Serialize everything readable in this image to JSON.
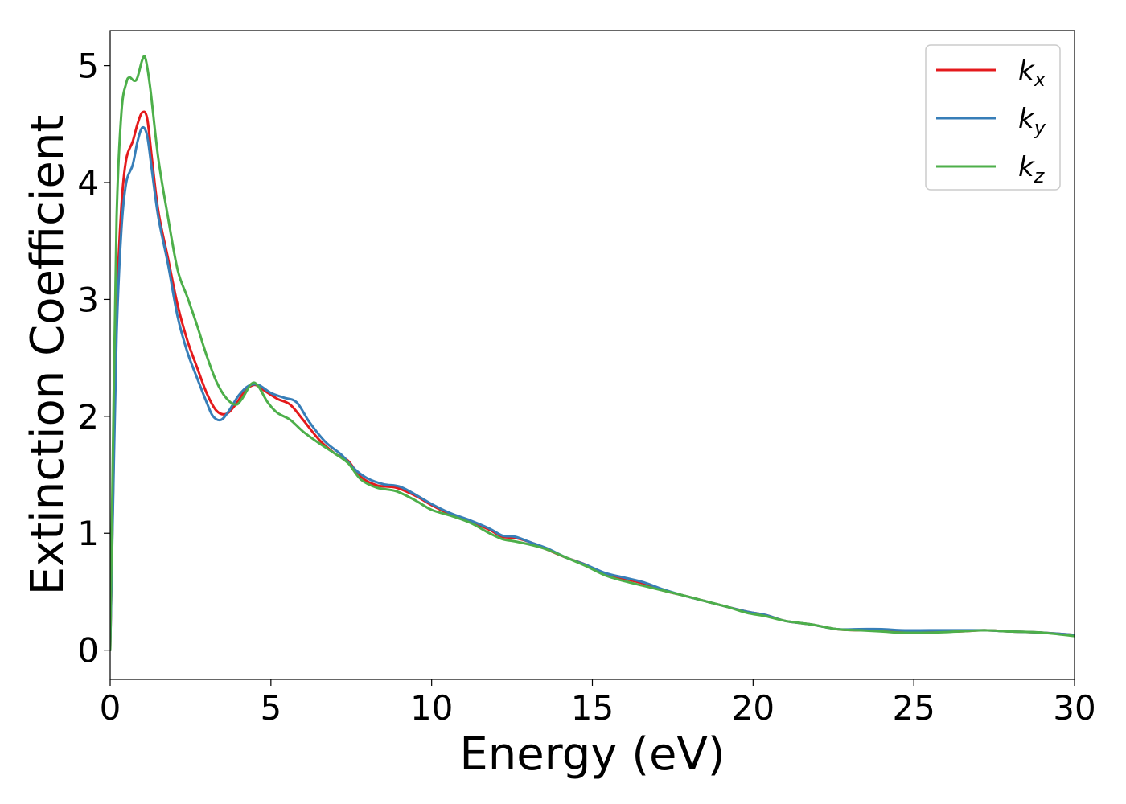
{
  "chart_data": {
    "type": "line",
    "title": "",
    "xlabel": "Energy (eV)",
    "ylabel": "Extinction Coefficient",
    "xlim": [
      0,
      30
    ],
    "ylim": [
      -0.25,
      5.3
    ],
    "xticks": [
      0,
      5,
      10,
      15,
      20,
      25,
      30
    ],
    "yticks": [
      0,
      1,
      2,
      3,
      4,
      5
    ],
    "grid": false,
    "legend_position": "top-right",
    "series": [
      {
        "name": "k_x",
        "name_main": "k",
        "name_sub": "x",
        "color": "#e41a1c",
        "points": [
          [
            0,
            0
          ],
          [
            0.1,
            1.5
          ],
          [
            0.2,
            2.9
          ],
          [
            0.35,
            3.8
          ],
          [
            0.5,
            4.2
          ],
          [
            0.7,
            4.35
          ],
          [
            0.85,
            4.5
          ],
          [
            1.0,
            4.6
          ],
          [
            1.15,
            4.55
          ],
          [
            1.3,
            4.2
          ],
          [
            1.5,
            3.75
          ],
          [
            1.8,
            3.35
          ],
          [
            2.1,
            2.95
          ],
          [
            2.4,
            2.65
          ],
          [
            2.7,
            2.42
          ],
          [
            3.0,
            2.2
          ],
          [
            3.3,
            2.05
          ],
          [
            3.6,
            2.02
          ],
          [
            3.9,
            2.1
          ],
          [
            4.2,
            2.22
          ],
          [
            4.5,
            2.27
          ],
          [
            4.8,
            2.22
          ],
          [
            5.2,
            2.15
          ],
          [
            5.6,
            2.1
          ],
          [
            6.0,
            1.97
          ],
          [
            6.5,
            1.8
          ],
          [
            7.0,
            1.68
          ],
          [
            7.4,
            1.62
          ],
          [
            7.8,
            1.48
          ],
          [
            8.3,
            1.41
          ],
          [
            8.9,
            1.39
          ],
          [
            9.5,
            1.32
          ],
          [
            10.0,
            1.24
          ],
          [
            10.6,
            1.16
          ],
          [
            11.2,
            1.1
          ],
          [
            11.8,
            1.03
          ],
          [
            12.2,
            0.97
          ],
          [
            12.6,
            0.96
          ],
          [
            13.1,
            0.92
          ],
          [
            13.6,
            0.86
          ],
          [
            14.2,
            0.79
          ],
          [
            14.8,
            0.73
          ],
          [
            15.4,
            0.65
          ],
          [
            16.0,
            0.61
          ],
          [
            16.6,
            0.57
          ],
          [
            17.2,
            0.51
          ],
          [
            17.8,
            0.47
          ],
          [
            18.5,
            0.42
          ],
          [
            19.2,
            0.37
          ],
          [
            19.8,
            0.33
          ],
          [
            20.4,
            0.3
          ],
          [
            21.0,
            0.25
          ],
          [
            21.8,
            0.22
          ],
          [
            22.6,
            0.18
          ],
          [
            23.3,
            0.17
          ],
          [
            24.0,
            0.17
          ],
          [
            24.6,
            0.16
          ],
          [
            25.5,
            0.16
          ],
          [
            26.4,
            0.16
          ],
          [
            27.2,
            0.17
          ],
          [
            28.0,
            0.16
          ],
          [
            29.0,
            0.15
          ],
          [
            30.0,
            0.13
          ]
        ]
      },
      {
        "name": "k_y",
        "name_main": "k",
        "name_sub": "y",
        "color": "#377eb8",
        "points": [
          [
            0,
            0
          ],
          [
            0.1,
            1.4
          ],
          [
            0.2,
            2.7
          ],
          [
            0.35,
            3.6
          ],
          [
            0.5,
            4.0
          ],
          [
            0.7,
            4.15
          ],
          [
            0.85,
            4.35
          ],
          [
            1.0,
            4.47
          ],
          [
            1.15,
            4.4
          ],
          [
            1.3,
            4.1
          ],
          [
            1.5,
            3.7
          ],
          [
            1.8,
            3.3
          ],
          [
            2.1,
            2.85
          ],
          [
            2.4,
            2.55
          ],
          [
            2.7,
            2.33
          ],
          [
            3.0,
            2.12
          ],
          [
            3.2,
            2.0
          ],
          [
            3.45,
            1.97
          ],
          [
            3.7,
            2.05
          ],
          [
            4.0,
            2.18
          ],
          [
            4.3,
            2.26
          ],
          [
            4.6,
            2.27
          ],
          [
            5.0,
            2.2
          ],
          [
            5.4,
            2.16
          ],
          [
            5.8,
            2.12
          ],
          [
            6.2,
            1.95
          ],
          [
            6.7,
            1.78
          ],
          [
            7.2,
            1.67
          ],
          [
            7.6,
            1.55
          ],
          [
            8.0,
            1.47
          ],
          [
            8.5,
            1.42
          ],
          [
            9.0,
            1.4
          ],
          [
            9.5,
            1.33
          ],
          [
            10.0,
            1.25
          ],
          [
            10.6,
            1.17
          ],
          [
            11.2,
            1.11
          ],
          [
            11.8,
            1.04
          ],
          [
            12.2,
            0.98
          ],
          [
            12.6,
            0.97
          ],
          [
            13.1,
            0.92
          ],
          [
            13.6,
            0.87
          ],
          [
            14.2,
            0.79
          ],
          [
            14.8,
            0.73
          ],
          [
            15.4,
            0.66
          ],
          [
            16.0,
            0.62
          ],
          [
            16.6,
            0.58
          ],
          [
            17.2,
            0.52
          ],
          [
            17.8,
            0.47
          ],
          [
            18.5,
            0.42
          ],
          [
            19.2,
            0.37
          ],
          [
            19.8,
            0.33
          ],
          [
            20.4,
            0.3
          ],
          [
            21.0,
            0.25
          ],
          [
            21.8,
            0.22
          ],
          [
            22.6,
            0.18
          ],
          [
            23.3,
            0.18
          ],
          [
            24.0,
            0.18
          ],
          [
            24.6,
            0.17
          ],
          [
            25.5,
            0.17
          ],
          [
            26.4,
            0.17
          ],
          [
            27.2,
            0.17
          ],
          [
            28.0,
            0.16
          ],
          [
            29.0,
            0.15
          ],
          [
            30.0,
            0.13
          ]
        ]
      },
      {
        "name": "k_z",
        "name_main": "k",
        "name_sub": "z",
        "color": "#4daf4a",
        "points": [
          [
            0,
            0
          ],
          [
            0.1,
            2.0
          ],
          [
            0.2,
            3.7
          ],
          [
            0.35,
            4.6
          ],
          [
            0.5,
            4.85
          ],
          [
            0.6,
            4.9
          ],
          [
            0.75,
            4.87
          ],
          [
            0.85,
            4.9
          ],
          [
            1.0,
            5.05
          ],
          [
            1.1,
            5.06
          ],
          [
            1.25,
            4.8
          ],
          [
            1.5,
            4.2
          ],
          [
            1.8,
            3.7
          ],
          [
            2.1,
            3.25
          ],
          [
            2.4,
            3.02
          ],
          [
            2.7,
            2.78
          ],
          [
            3.0,
            2.52
          ],
          [
            3.3,
            2.3
          ],
          [
            3.6,
            2.16
          ],
          [
            3.9,
            2.1
          ],
          [
            4.1,
            2.15
          ],
          [
            4.4,
            2.28
          ],
          [
            4.6,
            2.26
          ],
          [
            4.9,
            2.12
          ],
          [
            5.2,
            2.03
          ],
          [
            5.6,
            1.97
          ],
          [
            6.0,
            1.87
          ],
          [
            6.5,
            1.77
          ],
          [
            7.0,
            1.68
          ],
          [
            7.4,
            1.6
          ],
          [
            7.8,
            1.46
          ],
          [
            8.3,
            1.39
          ],
          [
            8.9,
            1.36
          ],
          [
            9.5,
            1.28
          ],
          [
            10.0,
            1.2
          ],
          [
            10.6,
            1.15
          ],
          [
            11.2,
            1.09
          ],
          [
            11.8,
            1.0
          ],
          [
            12.2,
            0.95
          ],
          [
            12.6,
            0.93
          ],
          [
            13.1,
            0.9
          ],
          [
            13.6,
            0.86
          ],
          [
            14.2,
            0.79
          ],
          [
            14.8,
            0.72
          ],
          [
            15.4,
            0.64
          ],
          [
            16.0,
            0.59
          ],
          [
            16.6,
            0.55
          ],
          [
            17.2,
            0.51
          ],
          [
            17.8,
            0.47
          ],
          [
            18.5,
            0.42
          ],
          [
            19.2,
            0.37
          ],
          [
            19.8,
            0.32
          ],
          [
            20.4,
            0.29
          ],
          [
            21.0,
            0.25
          ],
          [
            21.8,
            0.22
          ],
          [
            22.6,
            0.18
          ],
          [
            23.3,
            0.17
          ],
          [
            24.0,
            0.16
          ],
          [
            24.6,
            0.15
          ],
          [
            25.5,
            0.15
          ],
          [
            26.4,
            0.16
          ],
          [
            27.2,
            0.17
          ],
          [
            28.0,
            0.16
          ],
          [
            29.0,
            0.15
          ],
          [
            30.0,
            0.12
          ]
        ]
      }
    ]
  }
}
